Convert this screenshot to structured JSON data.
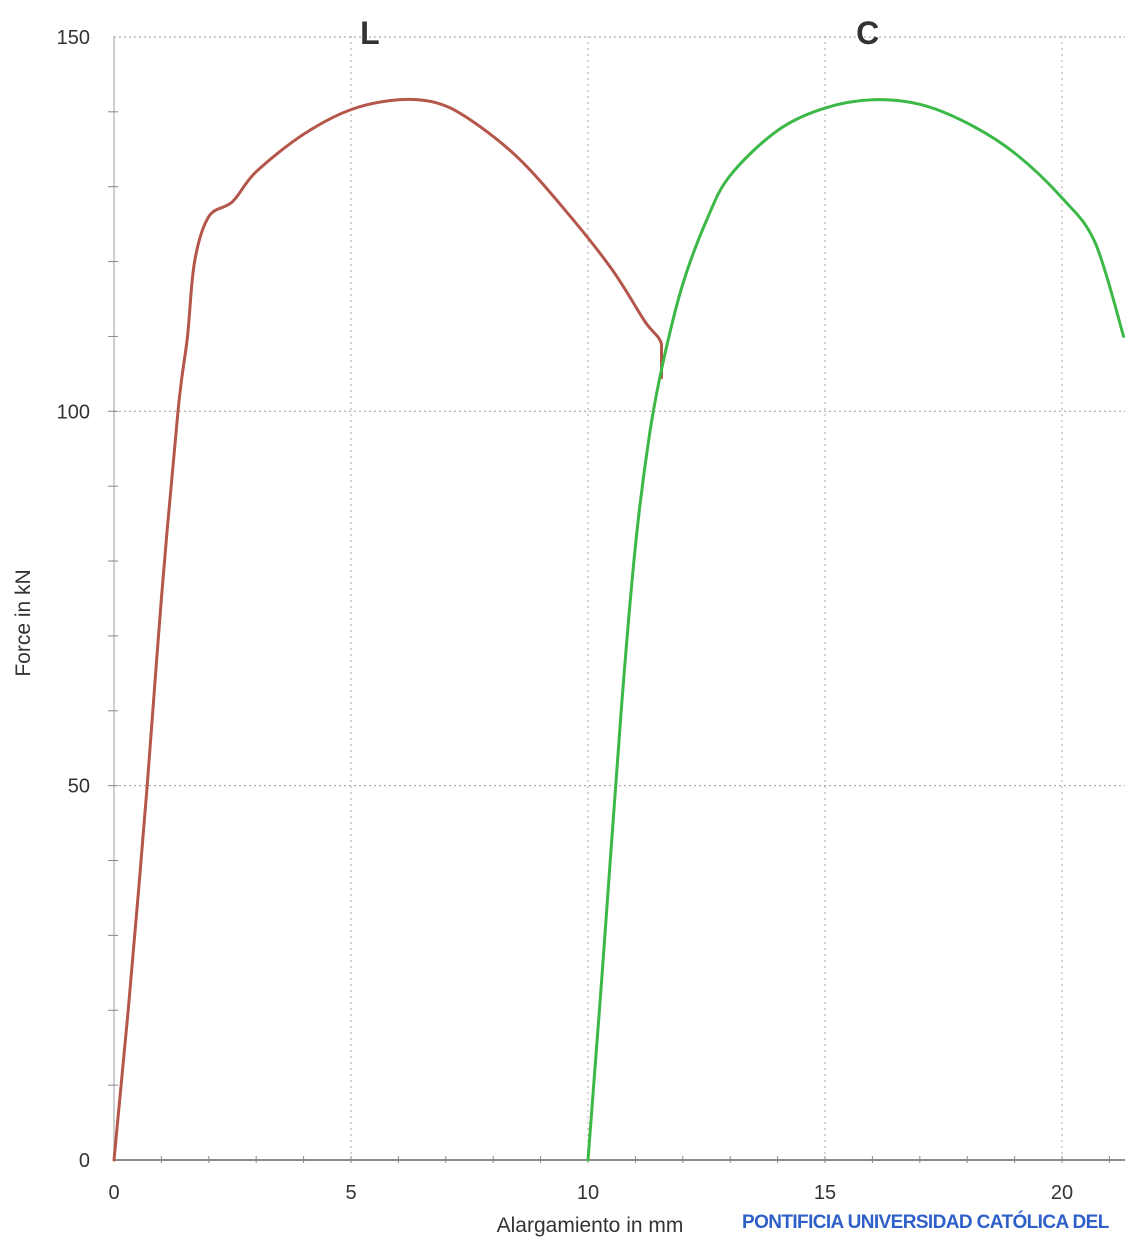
{
  "chart_data": {
    "type": "line",
    "title": "",
    "xlabel": "Alargamiento in mm",
    "ylabel": "Force in kN",
    "xlim": [
      0,
      21.3
    ],
    "ylim": [
      0,
      150
    ],
    "x_ticks": [
      0,
      5,
      10,
      15,
      20
    ],
    "x_tick_labels": [
      "0",
      "5",
      "10",
      "15",
      "20"
    ],
    "y_ticks": [
      0,
      50,
      100,
      150
    ],
    "y_tick_labels": [
      "0",
      "50",
      "100",
      "150"
    ],
    "grid": "dotted, at labeled ticks",
    "legend": "none; series labels printed above each curve",
    "series": [
      {
        "name": "L",
        "color": "#b5564a",
        "points": [
          [
            0,
            0
          ],
          [
            0.3,
            20
          ],
          [
            0.7,
            50
          ],
          [
            1.0,
            75
          ],
          [
            1.35,
            100
          ],
          [
            1.55,
            110
          ],
          [
            1.7,
            120
          ],
          [
            2.0,
            126
          ],
          [
            2.5,
            128
          ],
          [
            3.0,
            132
          ],
          [
            4.0,
            137
          ],
          [
            5.0,
            140.3
          ],
          [
            6.0,
            141.6
          ],
          [
            6.8,
            141.2
          ],
          [
            7.5,
            139
          ],
          [
            8.5,
            134
          ],
          [
            9.5,
            127
          ],
          [
            10.5,
            119
          ],
          [
            11.2,
            112
          ],
          [
            11.55,
            109
          ],
          [
            11.55,
            104.5
          ]
        ]
      },
      {
        "name": "C",
        "color": "#3cb846",
        "points": [
          [
            10.0,
            0
          ],
          [
            10.3,
            25
          ],
          [
            10.7,
            60
          ],
          [
            11.0,
            82
          ],
          [
            11.3,
            97
          ],
          [
            11.6,
            107
          ],
          [
            12.0,
            117
          ],
          [
            12.5,
            125.5
          ],
          [
            13.0,
            131.5
          ],
          [
            14.0,
            137.5
          ],
          [
            15.0,
            140.5
          ],
          [
            16.0,
            141.6
          ],
          [
            17.0,
            141
          ],
          [
            18.0,
            138.5
          ],
          [
            19.0,
            134.5
          ],
          [
            20.0,
            128.5
          ],
          [
            20.7,
            122.5
          ],
          [
            21.3,
            110
          ]
        ]
      }
    ],
    "watermark": "PONTIFICIA UNIVERSIDAD CATÓLICA DEL"
  }
}
